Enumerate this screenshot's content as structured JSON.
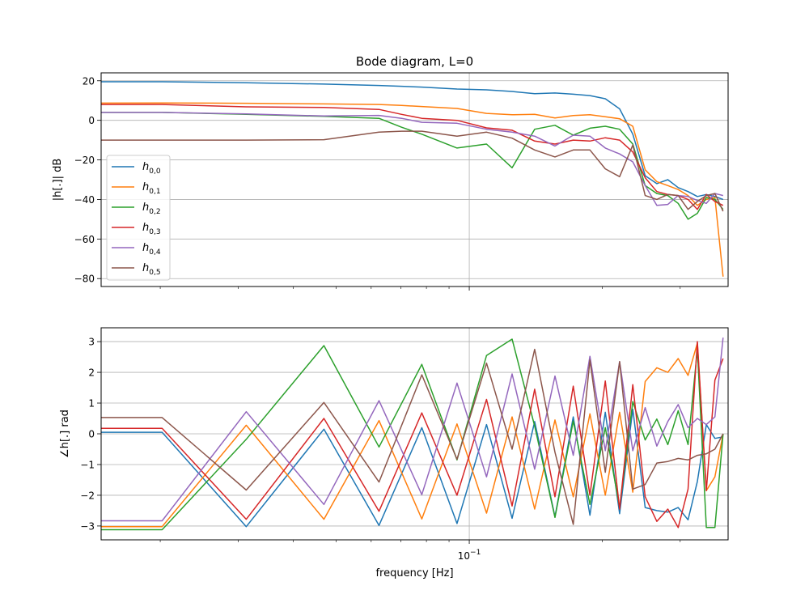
{
  "chart_data": {
    "type": "line",
    "title": "Bode diagram, L=0",
    "xlabel": "frequency [Hz]",
    "xscale": "log",
    "xlim": [
      0.0147,
      0.385
    ],
    "x_tick_labels": [
      {
        "value": 0.1,
        "label": "10",
        "exp": "−1"
      }
    ],
    "grid": true,
    "legend_position": "center-left",
    "colors": [
      "#1f77b4",
      "#ff7f0e",
      "#2ca02c",
      "#d62728",
      "#9467bd",
      "#8c564b"
    ],
    "legend": [
      {
        "base": "h",
        "sub": "0,0"
      },
      {
        "base": "h",
        "sub": "0,1"
      },
      {
        "base": "h",
        "sub": "0,2"
      },
      {
        "base": "h",
        "sub": "0,3"
      },
      {
        "base": "h",
        "sub": "0,4"
      },
      {
        "base": "h",
        "sub": "0,5"
      }
    ],
    "magnitude": {
      "ylabel": "|h[.]| dB",
      "ylim": [
        -84,
        24
      ],
      "yticks": [
        20,
        0,
        -20,
        -40,
        -60,
        -80
      ],
      "ytick_labels": [
        "20",
        "0",
        "−20",
        "−40",
        "−60",
        "−80"
      ],
      "x": [
        0.0147,
        0.0202,
        0.0313,
        0.0469,
        0.0625,
        0.0703,
        0.0781,
        0.0938,
        0.1094,
        0.125,
        0.1406,
        0.1563,
        0.1719,
        0.1875,
        0.2031,
        0.2188,
        0.2344,
        0.25,
        0.2656,
        0.2813,
        0.2969,
        0.3125,
        0.3281,
        0.3438,
        0.3594,
        0.375
      ],
      "series": [
        [
          19.5,
          19.5,
          19,
          18.3,
          17.6,
          17.2,
          16.8,
          15.8,
          15.4,
          14.6,
          13.5,
          13.8,
          13.2,
          12.5,
          10.9,
          5.8,
          -7,
          -28,
          -32,
          -30,
          -34,
          -36,
          -38.5,
          -37.5,
          -38.5,
          -40
        ],
        [
          8.7,
          8.8,
          8.6,
          8.3,
          8,
          7.5,
          7,
          6,
          3.5,
          2.8,
          3,
          1.2,
          2.4,
          2.8,
          1.8,
          0.8,
          -3,
          -25,
          -31,
          -33,
          -35,
          -38,
          -43,
          -40,
          -39,
          -79
        ],
        [
          4,
          4,
          3,
          2,
          1,
          -3.5,
          -7,
          -14,
          -12,
          -24,
          -4.5,
          -2.5,
          -7.5,
          -4,
          -3,
          -4.5,
          -12,
          -33,
          -37,
          -38,
          -42,
          -50,
          -47,
          -39,
          -40,
          -45
        ],
        [
          8,
          8,
          6.8,
          6.5,
          5.5,
          3,
          1,
          0,
          -3.8,
          -5,
          -10.5,
          -12,
          -10,
          -10.5,
          -8.8,
          -10,
          -16,
          -29,
          -36,
          -37.5,
          -38,
          -40,
          -45,
          -37.5,
          -41,
          -43
        ],
        [
          4,
          4,
          3.2,
          2.2,
          2.5,
          1,
          -1,
          -1.5,
          -4.5,
          -6,
          -8,
          -13,
          -7.5,
          -8,
          -14,
          -17,
          -21,
          -33,
          -43,
          -42.5,
          -38,
          -38.5,
          -40.5,
          -42,
          -37,
          -38
        ],
        [
          -10,
          -10,
          -10,
          -9.8,
          -6,
          -5.5,
          -5.5,
          -8,
          -6,
          -9,
          -15,
          -18.5,
          -15,
          -15,
          -24.5,
          -28.5,
          -12.5,
          -38,
          -40,
          -37.5,
          -38,
          -45,
          -41,
          -38,
          -37,
          -46
        ]
      ]
    },
    "phase": {
      "ylabel": "∠h[.] rad",
      "ylim": [
        -3.45,
        3.45
      ],
      "yticks": [
        3,
        2,
        1,
        0,
        -1,
        -2,
        -3
      ],
      "ytick_labels": [
        "3",
        "2",
        "1",
        "0",
        "−1",
        "−2",
        "−3"
      ],
      "series": [
        {
          "x": [
            0.0147,
            0.0202,
            0.0313,
            0.0469,
            0.0625,
            0.0781,
            0.0938,
            0.1094,
            0.125,
            0.1406,
            0.1563,
            0.1719,
            0.1875,
            0.2031,
            0.2188,
            0.2344,
            0.25,
            0.2656,
            0.2813,
            0.2969,
            0.3125,
            0.3281,
            0.3438,
            0.3594,
            0.375
          ],
          "y": [
            0.05,
            0.05,
            -3.02,
            0.15,
            -2.98,
            0.2,
            -2.92,
            0.3,
            -2.75,
            0.4,
            -2.7,
            0.55,
            -2.65,
            0.7,
            -2.6,
            0.8,
            -2.4,
            -2.5,
            -2.55,
            -2.4,
            -2.8,
            -1.55,
            0.3,
            -0.15,
            -0.1
          ]
        },
        {
          "x": [
            0.0147,
            0.0202,
            0.0313,
            0.0469,
            0.0625,
            0.0781,
            0.0938,
            0.1094,
            0.125,
            0.1406,
            0.1563,
            0.1719,
            0.1875,
            0.2031,
            0.2188,
            0.2344,
            0.25,
            0.2656,
            0.2813,
            0.2969,
            0.3125,
            0.3281,
            0.3438,
            0.3594,
            0.375
          ],
          "y": [
            -3.02,
            -3.02,
            0.28,
            -2.78,
            0.43,
            -2.77,
            0.32,
            -2.58,
            0.55,
            -2.45,
            0.45,
            -2.05,
            0.65,
            -2.0,
            0.7,
            -1.9,
            1.7,
            2.15,
            2.0,
            2.45,
            1.9,
            2.95,
            -1.85,
            -1.4,
            0.0
          ]
        },
        {
          "x": [
            0.0147,
            0.0202,
            0.0313,
            0.0469,
            0.0625,
            0.0781,
            0.0938,
            0.1094,
            0.125,
            0.1406,
            0.1563,
            0.1719,
            0.1875,
            0.2031,
            0.2188,
            0.2344,
            0.25,
            0.2656,
            0.2813,
            0.2969,
            0.3125,
            0.3281,
            0.3438,
            0.3594,
            0.375
          ],
          "y": [
            -3.12,
            -3.12,
            -0.18,
            2.87,
            -0.43,
            2.26,
            -0.85,
            2.55,
            3.08,
            0.25,
            -2.72,
            0.42,
            -2.3,
            0.2,
            -2.4,
            1.05,
            -0.2,
            0.48,
            -0.35,
            0.75,
            -0.35,
            2.75,
            -3.05,
            -3.05,
            0.0
          ]
        },
        {
          "x": [
            0.0147,
            0.0202,
            0.0313,
            0.0469,
            0.0625,
            0.0781,
            0.0938,
            0.1094,
            0.125,
            0.1406,
            0.1563,
            0.1719,
            0.1875,
            0.2031,
            0.2188,
            0.2344,
            0.25,
            0.2656,
            0.2813,
            0.2969,
            0.3125,
            0.3281,
            0.3438,
            0.3594,
            0.375
          ],
          "y": [
            0.18,
            0.18,
            -2.78,
            0.5,
            -2.52,
            0.68,
            -2.0,
            1.12,
            -2.35,
            1.45,
            -2.05,
            1.55,
            -2.0,
            1.72,
            -2.45,
            1.6,
            -2.05,
            -2.85,
            -2.45,
            -3.05,
            -1.8,
            3.0,
            -1.85,
            1.75,
            2.45
          ]
        },
        {
          "x": [
            0.0147,
            0.0202,
            0.0313,
            0.0469,
            0.0625,
            0.0781,
            0.0938,
            0.1094,
            0.125,
            0.1406,
            0.1563,
            0.1719,
            0.1875,
            0.2031,
            0.2188,
            0.2344,
            0.25,
            0.2656,
            0.2813,
            0.2969,
            0.3125,
            0.3281,
            0.3438,
            0.3594,
            0.375
          ],
          "y": [
            -2.83,
            -2.83,
            0.72,
            -2.3,
            1.08,
            -1.98,
            1.65,
            -1.4,
            1.95,
            -1.15,
            1.88,
            -0.7,
            2.52,
            -0.55,
            2.35,
            -0.55,
            0.85,
            -0.4,
            0.4,
            0.95,
            0.2,
            0.5,
            0.3,
            0.55,
            3.13
          ]
        },
        {
          "x": [
            0.0147,
            0.0202,
            0.0313,
            0.0469,
            0.0625,
            0.0781,
            0.0938,
            0.1094,
            0.125,
            0.1406,
            0.1563,
            0.1719,
            0.1875,
            0.2031,
            0.2188,
            0.2344,
            0.25,
            0.2656,
            0.2813,
            0.2969,
            0.3125,
            0.3281,
            0.3438,
            0.3594,
            0.375
          ],
          "y": [
            0.53,
            0.53,
            -1.83,
            1.02,
            -1.57,
            1.92,
            -0.83,
            2.3,
            -0.5,
            2.75,
            -0.6,
            -2.95,
            2.4,
            -1.25,
            2.35,
            -1.8,
            -1.65,
            -0.95,
            -0.9,
            -0.8,
            -0.85,
            -0.7,
            -0.65,
            -0.5,
            0.0
          ]
        }
      ]
    }
  }
}
